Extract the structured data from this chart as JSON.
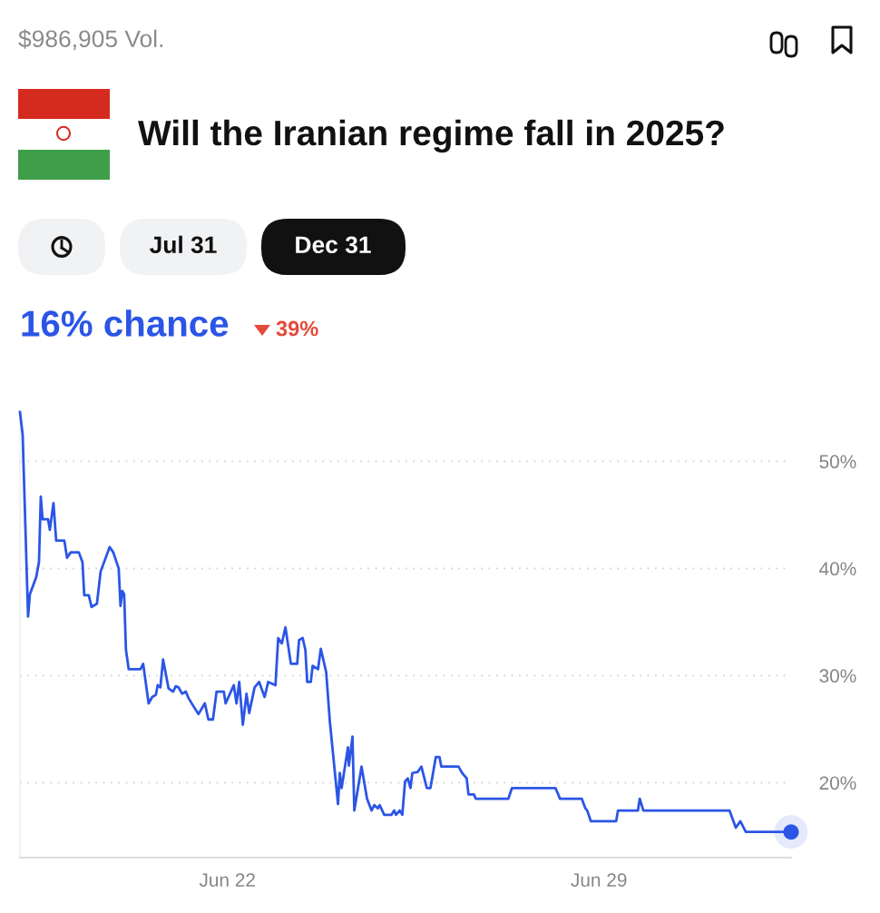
{
  "chart_data": {
    "type": "line",
    "title": "Will the Iranian regime fall in 2025?",
    "annotations": [
      "$986,905 Vol.",
      "Jul 31",
      "Dec 31",
      "16% chance",
      "39%"
    ],
    "x": [
      "2025-06-18T02:10",
      "2025-06-18T03:23",
      "2025-06-18T05:50",
      "2025-06-18T06:40",
      "2025-06-18T09:32",
      "2025-06-18T10:46",
      "2025-06-18T11:35",
      "2025-06-18T12:24",
      "2025-06-18T14:52",
      "2025-06-18T15:41",
      "2025-06-18T17:19",
      "2025-06-18T18:33",
      "2025-06-18T22:14",
      "2025-06-18T23:28",
      "2025-06-19T01:06",
      "2025-06-19T04:47",
      "2025-06-19T06:26",
      "2025-06-19T07:15",
      "2025-06-19T09:18",
      "2025-06-19T10:32",
      "2025-06-19T12:59",
      "2025-06-19T14:38",
      "2025-06-19T18:44",
      "2025-06-19T20:22",
      "2025-06-19T22:49",
      "2025-06-19T23:38",
      "2025-06-20T00:28",
      "2025-06-20T01:17",
      "2025-06-20T02:06",
      "2025-06-20T03:20",
      "2025-06-20T08:40",
      "2025-06-20T09:53",
      "2025-06-20T12:21",
      "2025-06-20T13:59",
      "2025-06-20T15:38",
      "2025-06-20T16:27",
      "2025-06-20T17:40",
      "2025-06-20T18:54",
      "2025-06-20T21:22",
      "2025-06-20T23:25",
      "2025-06-21T00:38",
      "2025-06-21T01:52",
      "2025-06-21T03:31",
      "2025-06-21T05:09",
      "2025-06-21T06:23",
      "2025-06-21T08:26",
      "2025-06-21T10:53",
      "2025-06-21T13:46",
      "2025-06-21T15:23",
      "2025-06-21T17:26",
      "2025-06-21T19:05",
      "2025-06-21T22:22",
      "2025-06-21T23:11",
      "2025-06-22T02:52",
      "2025-06-22T04:06",
      "2025-06-22T05:20",
      "2025-06-22T06:58",
      "2025-06-22T08:37",
      "2025-06-22T09:50",
      "2025-06-22T12:17",
      "2025-06-22T14:20",
      "2025-06-22T16:48",
      "2025-06-22T18:26",
      "2025-06-22T21:43",
      "2025-06-22T22:57",
      "2025-06-23T00:35",
      "2025-06-23T02:14",
      "2025-06-23T04:41",
      "2025-06-23T07:33",
      "2025-06-23T08:22",
      "2025-06-23T10:01",
      "2025-06-23T11:14",
      "2025-06-23T12:04",
      "2025-06-23T13:42",
      "2025-06-23T14:31",
      "2025-06-23T16:59",
      "2025-06-23T18:13",
      "2025-06-23T20:40",
      "2025-06-23T22:19",
      "2025-06-24T02:00",
      "2025-06-24T02:49",
      "2025-06-24T03:38",
      "2025-06-24T06:30",
      "2025-06-24T06:55",
      "2025-06-24T08:33",
      "2025-06-24T09:22",
      "2025-06-24T12:39",
      "2025-06-24T15:07",
      "2025-06-24T17:10",
      "2025-06-24T18:23",
      "2025-06-24T20:02",
      "2025-06-24T20:51",
      "2025-06-24T22:54",
      "2025-06-25T02:10",
      "2025-06-25T03:24",
      "2025-06-25T04:13",
      "2025-06-25T05:52",
      "2025-06-25T07:05",
      "2025-06-25T08:19",
      "2025-06-25T09:33",
      "2025-06-25T10:47",
      "2025-06-25T11:36",
      "2025-06-25T14:04",
      "2025-06-25T15:42",
      "2025-06-25T18:10",
      "2025-06-25T19:48",
      "2025-06-25T22:15",
      "2025-06-25T23:53",
      "2025-06-26T00:43",
      "2025-06-26T08:30",
      "2025-06-26T10:08",
      "2025-06-26T12:11",
      "2025-06-26T13:01",
      "2025-06-26T15:28",
      "2025-06-26T16:17",
      "2025-06-27T07:02",
      "2025-06-27T08:41",
      "2025-06-28T04:21",
      "2025-06-28T06:24",
      "2025-06-28T16:14",
      "2025-06-28T17:52",
      "2025-06-28T18:41",
      "2025-06-28T20:20",
      "2025-06-29T07:48",
      "2025-06-29T08:37",
      "2025-06-29T17:38",
      "2025-06-29T18:28",
      "2025-06-29T20:06",
      "2025-07-01T11:02",
      "2025-07-01T13:54",
      "2025-07-01T15:57",
      "2025-07-01T18:25",
      "2025-07-02T14:54"
    ],
    "series": [
      {
        "color": "#2b55e6",
        "values": [
          54.6,
          52.5,
          35.5,
          37.6,
          39.2,
          40.6,
          46.7,
          44.6,
          44.6,
          43.6,
          46.1,
          42.6,
          42.6,
          41.0,
          41.5,
          41.5,
          40.6,
          37.5,
          37.5,
          36.4,
          36.7,
          39.7,
          42.0,
          41.5,
          40.0,
          36.5,
          37.9,
          37.6,
          32.4,
          30.6,
          30.6,
          31.1,
          27.4,
          28.0,
          28.2,
          29.1,
          28.9,
          31.5,
          28.8,
          28.5,
          29.0,
          28.9,
          28.3,
          28.5,
          27.9,
          27.2,
          26.4,
          27.4,
          25.9,
          25.9,
          28.5,
          28.5,
          27.4,
          29.1,
          27.4,
          29.4,
          25.4,
          28.3,
          26.5,
          28.9,
          29.4,
          28.0,
          29.4,
          29.1,
          33.5,
          33.0,
          34.5,
          31.1,
          31.1,
          33.3,
          33.5,
          32.4,
          29.4,
          29.4,
          30.9,
          30.6,
          32.5,
          30.3,
          25.7,
          18.0,
          20.9,
          19.5,
          23.3,
          21.6,
          24.3,
          17.4,
          21.5,
          18.5,
          17.4,
          17.9,
          17.6,
          17.9,
          17.0,
          17.0,
          17.4,
          17.0,
          17.4,
          17.0,
          20.1,
          20.4,
          19.5,
          20.9,
          21.0,
          21.5,
          19.5,
          19.5,
          22.4,
          22.4,
          21.5,
          21.5,
          20.9,
          20.4,
          18.9,
          18.9,
          18.5,
          18.5,
          19.5,
          19.5,
          18.5,
          18.5,
          17.6,
          17.4,
          16.4,
          16.4,
          17.4,
          17.4,
          18.5,
          17.4,
          17.4,
          15.8,
          16.4,
          15.4,
          15.4
        ]
      },
      {
        "type": "scatter",
        "color": "#2b55e6",
        "x": [
          "2025-07-02T14:54"
        ],
        "values": [
          15.4
        ]
      }
    ],
    "xlim": [
      "2025-06-18T02:10",
      "2025-07-02T14:54"
    ],
    "xticks": [
      {
        "value": "2025-06-22",
        "label": "Jun 22"
      },
      {
        "value": "2025-06-29",
        "label": "Jun 29"
      }
    ],
    "ylim": [
      13,
      54.6
    ],
    "yticks": [
      {
        "value": 20,
        "label": "20%"
      },
      {
        "value": 30,
        "label": "30%"
      },
      {
        "value": 40,
        "label": "40%"
      },
      {
        "value": 50,
        "label": "50%"
      }
    ],
    "grid": "y"
  }
}
